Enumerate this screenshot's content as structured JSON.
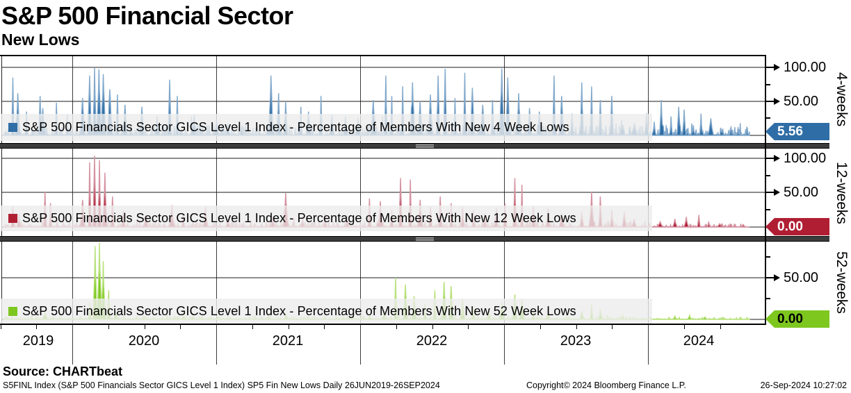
{
  "title": "S&P 500 Financial Sector",
  "subtitle": "New Lows",
  "source_line": "Source: CHARTbeat",
  "footer": {
    "left": "S5FINL Index (S&P 500 Financials Sector GICS Level 1 Index) SP5 Fin New Lows  Daily 26JUN2019-26SEP2024",
    "copyright": "Copyright© 2024 Bloomberg Finance L.P.",
    "timestamp": "26-Sep-2024 10:27:02"
  },
  "x_axis": {
    "year_labels": [
      "2019",
      "2020",
      "2021",
      "2022",
      "2023",
      "2024"
    ],
    "range": "26JUN2019-26SEP2024"
  },
  "chart_data": [
    {
      "type": "area",
      "name": "4-week new lows",
      "axis_label": "4-weeks",
      "legend": "S&P 500 Financials Sector GICS Level 1 Index - Percentage of Members With New 4 Week Lows",
      "color": "#2e6da6",
      "tag_text_color": "#ffffff",
      "last_value": 5.56,
      "last_value_label": "5.56",
      "ylim": [
        0,
        117
      ],
      "y_ticks": [
        {
          "value": 100,
          "label": "100.00"
        },
        {
          "value": 50,
          "label": "50.00"
        }
      ],
      "y_minor_ticks": [
        75,
        25
      ],
      "x_range": "26JUN2019-26SEP2024",
      "series": {
        "seed": 11,
        "noise": {
          "prob": 0.55,
          "amp": 16,
          "base": 2.5,
          "damp": 1.0
        },
        "spikes": [
          [
            0.012,
            85
          ],
          [
            0.018,
            62
          ],
          [
            0.03,
            35
          ],
          [
            0.048,
            58
          ],
          [
            0.052,
            40
          ],
          [
            0.07,
            48
          ],
          [
            0.085,
            30
          ],
          [
            0.105,
            55
          ],
          [
            0.115,
            88
          ],
          [
            0.121,
            100
          ],
          [
            0.127,
            97
          ],
          [
            0.133,
            90
          ],
          [
            0.142,
            68
          ],
          [
            0.152,
            60
          ],
          [
            0.162,
            45
          ],
          [
            0.185,
            42
          ],
          [
            0.205,
            28
          ],
          [
            0.222,
            82
          ],
          [
            0.232,
            58
          ],
          [
            0.255,
            30
          ],
          [
            0.285,
            22
          ],
          [
            0.3,
            18
          ],
          [
            0.32,
            15
          ],
          [
            0.358,
            88
          ],
          [
            0.368,
            62
          ],
          [
            0.378,
            50
          ],
          [
            0.398,
            42
          ],
          [
            0.408,
            35
          ],
          [
            0.425,
            58
          ],
          [
            0.44,
            30
          ],
          [
            0.458,
            28
          ],
          [
            0.475,
            25
          ],
          [
            0.495,
            52
          ],
          [
            0.512,
            88
          ],
          [
            0.52,
            58
          ],
          [
            0.535,
            72
          ],
          [
            0.548,
            78
          ],
          [
            0.558,
            50
          ],
          [
            0.572,
            60
          ],
          [
            0.582,
            88
          ],
          [
            0.592,
            98
          ],
          [
            0.605,
            55
          ],
          [
            0.618,
            92
          ],
          [
            0.628,
            70
          ],
          [
            0.642,
            45
          ],
          [
            0.655,
            52
          ],
          [
            0.668,
            98
          ],
          [
            0.676,
            85
          ],
          [
            0.69,
            62
          ],
          [
            0.705,
            40
          ],
          [
            0.718,
            35
          ],
          [
            0.738,
            88
          ],
          [
            0.748,
            58
          ],
          [
            0.762,
            32
          ],
          [
            0.775,
            78
          ],
          [
            0.788,
            72
          ],
          [
            0.8,
            52
          ],
          [
            0.815,
            58
          ],
          [
            0.828,
            22
          ],
          [
            0.845,
            18
          ],
          [
            0.862,
            32
          ],
          [
            0.872,
            20
          ],
          [
            0.882,
            52
          ],
          [
            0.895,
            28
          ],
          [
            0.905,
            42
          ],
          [
            0.912,
            38
          ],
          [
            0.925,
            15
          ],
          [
            0.935,
            32
          ],
          [
            0.948,
            25
          ],
          [
            0.962,
            8
          ],
          [
            0.975,
            12
          ]
        ]
      }
    },
    {
      "type": "area",
      "name": "12-week new lows",
      "axis_label": "12-weeks",
      "legend": "S&P 500 Financials Sector GICS Level 1 Index - Percentage of Members With New 12 Week Lows",
      "color": "#b01e33",
      "tag_text_color": "#ffffff",
      "last_value": 0,
      "last_value_label": "0.00",
      "ylim": [
        0,
        115
      ],
      "y_ticks": [
        {
          "value": 100,
          "label": "100.00"
        },
        {
          "value": 50,
          "label": "50.00"
        }
      ],
      "y_minor_ticks": [
        75,
        25
      ],
      "x_range": "26JUN2019-26SEP2024",
      "series": {
        "seed": 22,
        "noise": {
          "prob": 0.45,
          "amp": 9,
          "base": 1.5,
          "damp": 0.55
        },
        "spikes": [
          [
            0.012,
            30
          ],
          [
            0.02,
            20
          ],
          [
            0.055,
            52
          ],
          [
            0.062,
            35
          ],
          [
            0.105,
            40
          ],
          [
            0.115,
            95
          ],
          [
            0.121,
            105
          ],
          [
            0.128,
            98
          ],
          [
            0.135,
            80
          ],
          [
            0.145,
            45
          ],
          [
            0.16,
            25
          ],
          [
            0.19,
            18
          ],
          [
            0.225,
            32
          ],
          [
            0.24,
            20
          ],
          [
            0.27,
            30
          ],
          [
            0.3,
            12
          ],
          [
            0.36,
            15
          ],
          [
            0.378,
            50
          ],
          [
            0.4,
            15
          ],
          [
            0.43,
            20
          ],
          [
            0.46,
            15
          ],
          [
            0.49,
            42
          ],
          [
            0.505,
            38
          ],
          [
            0.52,
            25
          ],
          [
            0.532,
            72
          ],
          [
            0.545,
            70
          ],
          [
            0.558,
            40
          ],
          [
            0.572,
            30
          ],
          [
            0.585,
            45
          ],
          [
            0.6,
            35
          ],
          [
            0.615,
            30
          ],
          [
            0.63,
            25
          ],
          [
            0.645,
            20
          ],
          [
            0.66,
            28
          ],
          [
            0.672,
            35
          ],
          [
            0.685,
            72
          ],
          [
            0.695,
            62
          ],
          [
            0.71,
            30
          ],
          [
            0.73,
            28
          ],
          [
            0.748,
            20
          ],
          [
            0.775,
            22
          ],
          [
            0.788,
            52
          ],
          [
            0.8,
            45
          ],
          [
            0.815,
            25
          ],
          [
            0.832,
            22
          ],
          [
            0.845,
            12
          ],
          [
            0.88,
            8
          ],
          [
            0.9,
            12
          ],
          [
            0.915,
            15
          ],
          [
            0.932,
            18
          ],
          [
            0.945,
            8
          ],
          [
            0.96,
            5
          ]
        ]
      }
    },
    {
      "type": "area",
      "name": "52-week new lows",
      "axis_label": "52-weeks",
      "legend": "S&P 500 Financials Sector GICS Level 1 Index - Percentage of Members With New 52 Week Lows",
      "color": "#7dc71e",
      "tag_text_color": "#000000",
      "last_value": 0,
      "last_value_label": "0.00",
      "ylim": [
        0,
        93
      ],
      "y_ticks": [
        {
          "value": 50,
          "label": "50.00"
        }
      ],
      "y_minor_ticks": [
        75,
        25
      ],
      "x_range": "26JUN2019-26SEP2024",
      "series": {
        "seed": 33,
        "noise": {
          "prob": 0.3,
          "amp": 4,
          "base": 0.9,
          "damp": 0.6
        },
        "spikes": [
          [
            0.055,
            8
          ],
          [
            0.115,
            20
          ],
          [
            0.122,
            88
          ],
          [
            0.128,
            92
          ],
          [
            0.133,
            70
          ],
          [
            0.14,
            35
          ],
          [
            0.15,
            10
          ],
          [
            0.24,
            5
          ],
          [
            0.378,
            8
          ],
          [
            0.43,
            4
          ],
          [
            0.49,
            6
          ],
          [
            0.51,
            10
          ],
          [
            0.525,
            50
          ],
          [
            0.538,
            42
          ],
          [
            0.55,
            28
          ],
          [
            0.565,
            18
          ],
          [
            0.578,
            35
          ],
          [
            0.59,
            45
          ],
          [
            0.6,
            40
          ],
          [
            0.615,
            25
          ],
          [
            0.63,
            15
          ],
          [
            0.65,
            12
          ],
          [
            0.668,
            20
          ],
          [
            0.685,
            30
          ],
          [
            0.695,
            25
          ],
          [
            0.71,
            12
          ],
          [
            0.73,
            8
          ],
          [
            0.775,
            10
          ],
          [
            0.788,
            18
          ],
          [
            0.8,
            12
          ],
          [
            0.83,
            5
          ],
          [
            0.9,
            4
          ],
          [
            0.92,
            5
          ],
          [
            0.94,
            3
          ]
        ]
      }
    }
  ]
}
